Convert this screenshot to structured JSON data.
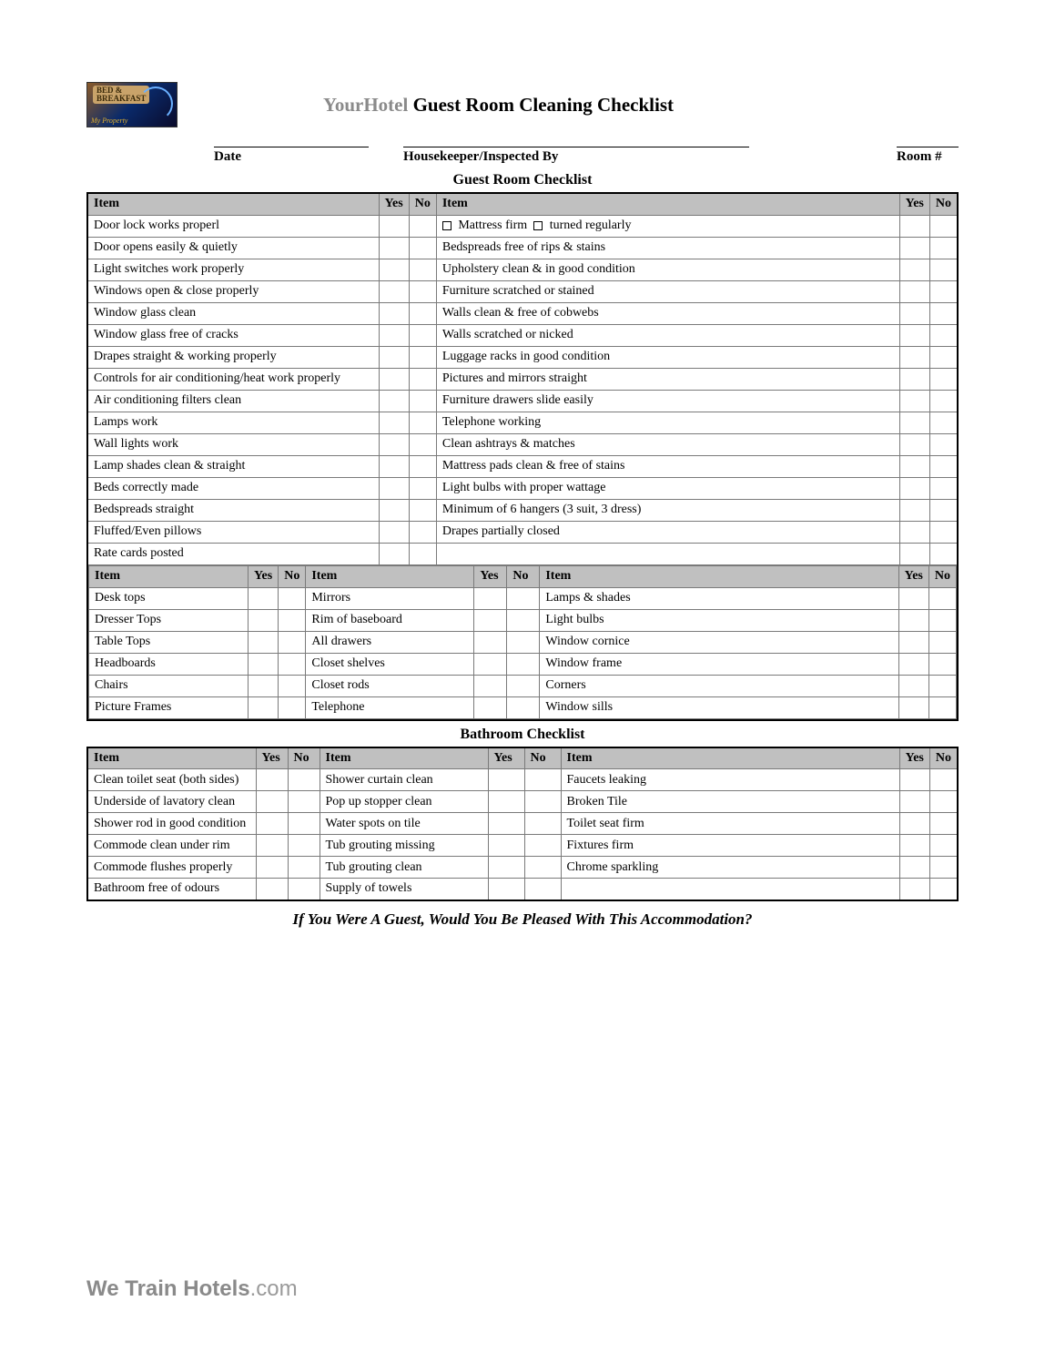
{
  "logo": {
    "line1": "BED &",
    "line2": "BREAKFAST",
    "tagline": "My Property"
  },
  "title": {
    "prefix": "YourHotel",
    "rest": " Guest Room Cleaning Checklist"
  },
  "fields": {
    "date": "Date",
    "housekeeper": "Housekeeper/Inspected By",
    "room": "Room #"
  },
  "sections": {
    "guest": "Guest Room Checklist",
    "bath": "Bathroom Checklist"
  },
  "headers": {
    "item": "Item",
    "yes": "Yes",
    "no": "No"
  },
  "guest_left": [
    "Door lock works properl",
    "Door opens easily & quietly",
    "Light switches work properly",
    "Windows open & close properly",
    "Window glass clean",
    "Window glass free of cracks",
    "Drapes straight & working properly",
    "Controls for air conditioning/heat work properly",
    "Air conditioning filters clean",
    "Lamps work",
    "Wall lights work",
    "Lamp shades clean & straight",
    "Beds correctly made",
    "Bedspreads straight",
    "Fluffed/Even pillows",
    "Rate cards posted"
  ],
  "guest_right_first": {
    "cb1": "Mattress firm",
    "cb2": "turned regularly"
  },
  "guest_right": [
    "Bedspreads free of rips & stains",
    "Upholstery clean & in good condition",
    "Furniture scratched or stained",
    "Walls clean & free of cobwebs",
    "Walls scratched or nicked",
    "Luggage racks in good condition",
    "Pictures and mirrors straight",
    "Furniture drawers slide easily",
    "Telephone working",
    "Clean ashtrays & matches",
    "Mattress pads clean & free of stains",
    "Light bulbs with proper wattage",
    "Minimum of 6 hangers (3 suit, 3 dress)",
    "Drapes partially closed"
  ],
  "triple_a": [
    "Desk tops",
    "Dresser Tops",
    "Table Tops",
    "Headboards",
    "Chairs",
    "Picture Frames"
  ],
  "triple_b": [
    "Mirrors",
    "Rim of baseboard",
    "All drawers",
    "Closet shelves",
    "Closet rods",
    "Telephone"
  ],
  "triple_c": [
    "Lamps & shades",
    "Light bulbs",
    "Window cornice",
    "Window frame",
    "Corners",
    "Window sills"
  ],
  "bath_a": [
    "Clean toilet seat (both sides)",
    "Underside of lavatory clean",
    "Shower rod in good condition",
    "Commode clean under rim",
    "Commode flushes properly",
    "Bathroom free of odours"
  ],
  "bath_b": [
    "Shower curtain clean",
    "Pop up stopper clean",
    "Water spots on tile",
    "Tub grouting missing",
    "Tub grouting clean",
    "Supply of towels"
  ],
  "bath_c": [
    "Faucets leaking",
    "Broken Tile",
    "Toilet seat firm",
    "Fixtures firm",
    "Chrome sparkling",
    ""
  ],
  "footer_q": "If You Were A Guest, Would You Be Pleased With This Accommodation?",
  "brand": {
    "bold": "We Train Hotels",
    "rest": ".com"
  },
  "colors": {
    "header_bg": "#c0c0c0",
    "border": "#7a7a7a",
    "outer_border": "#000000",
    "title_prefix": "#8a8a8a"
  }
}
